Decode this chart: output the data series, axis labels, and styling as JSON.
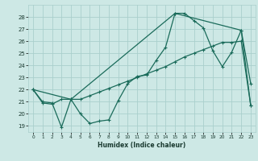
{
  "xlabel": "Humidex (Indice chaleur)",
  "bg_color": "#cde8e5",
  "grid_color": "#aacfcc",
  "line_color": "#1a6b5a",
  "xlim": [
    -0.5,
    23.5
  ],
  "ylim": [
    18.5,
    29.0
  ],
  "xticks": [
    0,
    1,
    2,
    3,
    4,
    5,
    6,
    7,
    8,
    9,
    10,
    11,
    12,
    13,
    14,
    15,
    16,
    17,
    18,
    19,
    20,
    21,
    22,
    23
  ],
  "yticks": [
    19,
    20,
    21,
    22,
    23,
    24,
    25,
    26,
    27,
    28
  ],
  "line1_x": [
    0,
    1,
    2,
    3,
    4,
    5,
    6,
    7,
    8,
    9,
    10,
    11,
    12,
    13,
    14,
    15,
    16,
    17,
    18,
    19,
    20,
    21,
    22,
    23
  ],
  "line1_y": [
    22.0,
    20.9,
    20.8,
    21.2,
    21.2,
    20.0,
    19.2,
    19.4,
    19.5,
    21.1,
    22.5,
    23.1,
    23.2,
    24.4,
    25.5,
    28.3,
    28.3,
    27.7,
    27.1,
    25.2,
    23.9,
    25.1,
    26.9,
    22.5
  ],
  "line2_x": [
    0,
    1,
    2,
    3,
    4,
    5,
    6,
    7,
    8,
    9,
    10,
    11,
    12,
    13,
    14,
    15,
    16,
    17,
    18,
    19,
    20,
    21,
    22,
    23
  ],
  "line2_y": [
    22.0,
    21.0,
    20.9,
    18.9,
    21.2,
    21.2,
    21.5,
    21.8,
    22.1,
    22.4,
    22.7,
    23.0,
    23.3,
    23.6,
    23.9,
    24.3,
    24.7,
    25.0,
    25.3,
    25.6,
    25.9,
    25.9,
    26.0,
    20.7
  ],
  "line3_x": [
    0,
    4,
    15,
    22,
    23
  ],
  "line3_y": [
    22.0,
    21.2,
    28.3,
    26.9,
    20.7
  ]
}
